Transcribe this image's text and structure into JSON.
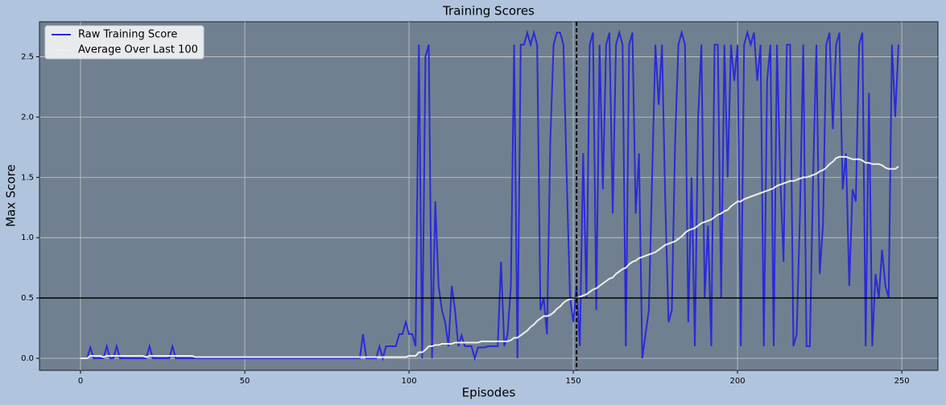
{
  "chart_data": {
    "type": "line",
    "title": "Training Scores",
    "x_label": "Episodes",
    "y_label": "Max Score",
    "x": [
      0,
      1,
      2,
      3,
      4,
      5,
      6,
      7,
      8,
      9,
      10,
      11,
      12,
      13,
      14,
      15,
      16,
      17,
      18,
      19,
      20,
      21,
      22,
      23,
      24,
      25,
      26,
      27,
      28,
      29,
      30,
      31,
      32,
      33,
      34,
      35,
      36,
      37,
      38,
      39,
      40,
      41,
      42,
      43,
      44,
      45,
      46,
      47,
      48,
      49,
      50,
      51,
      52,
      53,
      54,
      55,
      56,
      57,
      58,
      59,
      60,
      61,
      62,
      63,
      64,
      65,
      66,
      67,
      68,
      69,
      70,
      71,
      72,
      73,
      74,
      75,
      76,
      77,
      78,
      79,
      80,
      81,
      82,
      83,
      84,
      85,
      86,
      87,
      88,
      89,
      90,
      91,
      92,
      93,
      94,
      95,
      96,
      97,
      98,
      99,
      100,
      101,
      102,
      103,
      104,
      105,
      106,
      107,
      108,
      109,
      110,
      111,
      112,
      113,
      114,
      115,
      116,
      117,
      118,
      119,
      120,
      121,
      122,
      123,
      124,
      125,
      126,
      127,
      128,
      129,
      130,
      131,
      132,
      133,
      134,
      135,
      136,
      137,
      138,
      139,
      140,
      141,
      142,
      143,
      144,
      145,
      146,
      147,
      148,
      149,
      150,
      151,
      152,
      153,
      154,
      155,
      156,
      157,
      158,
      159,
      160,
      161,
      162,
      163,
      164,
      165,
      166,
      167,
      168,
      169,
      170,
      171,
      172,
      173,
      174,
      175,
      176,
      177,
      178,
      179,
      180,
      181,
      182,
      183,
      184,
      185,
      186,
      187,
      188,
      189,
      190,
      191,
      192,
      193,
      194,
      195,
      196,
      197,
      198,
      199,
      200,
      201,
      202,
      203,
      204,
      205,
      206,
      207,
      208,
      209,
      210,
      211,
      212,
      213,
      214,
      215,
      216,
      217,
      218,
      219,
      220,
      221,
      222,
      223,
      224,
      225,
      226,
      227,
      228,
      229,
      230,
      231,
      232,
      233,
      234,
      235,
      236,
      237,
      238,
      239,
      240,
      241,
      242,
      243,
      244,
      245,
      246,
      247,
      248,
      249
    ],
    "series": [
      {
        "name": "Raw Training Score",
        "color": "#2a2ad8",
        "values": [
          0,
          0,
          0,
          0.09,
          0,
          0,
          0,
          0,
          0.1,
          0,
          0,
          0.1,
          0,
          0,
          0,
          0,
          0,
          0,
          0,
          0,
          0,
          0.1,
          0,
          0,
          0,
          0,
          0,
          0,
          0.1,
          0,
          0,
          0,
          0,
          0,
          0,
          0,
          0,
          0,
          0,
          0,
          0,
          0,
          0,
          0,
          0,
          0,
          0,
          0,
          0,
          0,
          0,
          0,
          0,
          0,
          0,
          0,
          0,
          0,
          0,
          0,
          0,
          0,
          0,
          0,
          0,
          0,
          0,
          0,
          0,
          0,
          0,
          0,
          0,
          0,
          0,
          0,
          0,
          0,
          0,
          0,
          0,
          0,
          0,
          0,
          0,
          0,
          0.2,
          0,
          0,
          0,
          0,
          0.1,
          0,
          0.1,
          0.1,
          0.1,
          0.1,
          0.2,
          0.2,
          0.3,
          0.2,
          0.2,
          0.1,
          2.6,
          0,
          2.5,
          2.6,
          0,
          1.3,
          0.6,
          0.4,
          0.3,
          0.1,
          0.6,
          0.4,
          0.1,
          0.19,
          0.1,
          0.1,
          0.1,
          0,
          0.09,
          0.09,
          0.09,
          0.1,
          0.1,
          0.1,
          0.1,
          0.8,
          0.1,
          0.2,
          0.6,
          2.6,
          0,
          2.6,
          2.6,
          2.7,
          2.6,
          2.7,
          2.6,
          0.4,
          0.5,
          0.2,
          1.8,
          2.6,
          2.7,
          2.7,
          2.6,
          1.5,
          0.5,
          0.3,
          0.6,
          0.1,
          1.7,
          0.5,
          2.6,
          2.7,
          0.4,
          2.6,
          1.4,
          2.6,
          2.7,
          1.2,
          2.6,
          2.7,
          2.6,
          0.1,
          2.6,
          2.7,
          1.2,
          1.7,
          0,
          0.2,
          0.4,
          1.5,
          2.6,
          2.1,
          2.6,
          1.3,
          0.3,
          0.4,
          1.8,
          2.6,
          2.7,
          2.6,
          0.3,
          1.5,
          0.1,
          2,
          2.6,
          0.5,
          1.1,
          0.1,
          2.6,
          2.6,
          0.5,
          2.6,
          1.5,
          2.6,
          2.3,
          2.6,
          0.1,
          2.6,
          2.7,
          2.6,
          2.7,
          2.3,
          2.6,
          0.1,
          2.3,
          2.6,
          0.1,
          2.6,
          1.5,
          0.8,
          2.6,
          2.6,
          0.1,
          0.2,
          1.2,
          2.6,
          0.1,
          0.1,
          1.5,
          2.6,
          0.7,
          1.1,
          2.6,
          2.7,
          1.9,
          2.6,
          2.7,
          1.4,
          1.7,
          0.6,
          1.4,
          1.3,
          2.6,
          2.7,
          0.1,
          2.2,
          0.1,
          0.7,
          0.5,
          0.9,
          0.6,
          0.5,
          2.6,
          2,
          2.6
        ]
      },
      {
        "name": "Average Over Last 100",
        "color": "#eeeeee",
        "values": [
          0,
          0,
          0,
          0.02,
          0.02,
          0.02,
          0.02,
          0.01,
          0.02,
          0.02,
          0.02,
          0.02,
          0.02,
          0.02,
          0.02,
          0.02,
          0.02,
          0.02,
          0.02,
          0.02,
          0.01,
          0.02,
          0.02,
          0.02,
          0.02,
          0.02,
          0.02,
          0.02,
          0.02,
          0.02,
          0.02,
          0.02,
          0.02,
          0.02,
          0.02,
          0.01,
          0.01,
          0.01,
          0.01,
          0.01,
          0.01,
          0.01,
          0.01,
          0.01,
          0.01,
          0.01,
          0.01,
          0.01,
          0.01,
          0.01,
          0.01,
          0.01,
          0.01,
          0.01,
          0.01,
          0.01,
          0.01,
          0.01,
          0.01,
          0.01,
          0.01,
          0.01,
          0.01,
          0.01,
          0.01,
          0.01,
          0.01,
          0.01,
          0.01,
          0.01,
          0.01,
          0.01,
          0.01,
          0.01,
          0.01,
          0.01,
          0.01,
          0.01,
          0.01,
          0.01,
          0.01,
          0.01,
          0.01,
          0.01,
          0.01,
          0.01,
          0.01,
          0.01,
          0.01,
          0.01,
          0.01,
          0.01,
          0.01,
          0.01,
          0.01,
          0.01,
          0.01,
          0.01,
          0.01,
          0.01,
          0.02,
          0.02,
          0.02,
          0.05,
          0.05,
          0.07,
          0.1,
          0.1,
          0.11,
          0.11,
          0.12,
          0.12,
          0.12,
          0.12,
          0.13,
          0.13,
          0.13,
          0.13,
          0.13,
          0.13,
          0.13,
          0.13,
          0.14,
          0.14,
          0.14,
          0.14,
          0.14,
          0.14,
          0.14,
          0.14,
          0.14,
          0.15,
          0.17,
          0.17,
          0.19,
          0.21,
          0.23,
          0.26,
          0.28,
          0.31,
          0.33,
          0.35,
          0.35,
          0.36,
          0.38,
          0.41,
          0.43,
          0.46,
          0.48,
          0.49,
          0.5,
          0.5,
          0.51,
          0.52,
          0.53,
          0.55,
          0.57,
          0.58,
          0.6,
          0.62,
          0.64,
          0.66,
          0.67,
          0.7,
          0.72,
          0.74,
          0.75,
          0.78,
          0.8,
          0.81,
          0.83,
          0.84,
          0.85,
          0.86,
          0.87,
          0.88,
          0.9,
          0.92,
          0.94,
          0.95,
          0.96,
          0.97,
          0.99,
          1.01,
          1.04,
          1.06,
          1.07,
          1.08,
          1.1,
          1.12,
          1.13,
          1.14,
          1.15,
          1.17,
          1.19,
          1.2,
          1.22,
          1.23,
          1.26,
          1.28,
          1.3,
          1.3,
          1.32,
          1.33,
          1.34,
          1.35,
          1.36,
          1.37,
          1.38,
          1.39,
          1.4,
          1.41,
          1.43,
          1.44,
          1.45,
          1.46,
          1.47,
          1.47,
          1.48,
          1.49,
          1.5,
          1.5,
          1.51,
          1.52,
          1.53,
          1.55,
          1.56,
          1.58,
          1.61,
          1.63,
          1.66,
          1.67,
          1.67,
          1.67,
          1.66,
          1.65,
          1.65,
          1.65,
          1.64,
          1.62,
          1.62,
          1.61,
          1.61,
          1.61,
          1.6,
          1.58,
          1.57,
          1.57,
          1.57,
          1.59
        ]
      }
    ],
    "xlim": [
      -12.5,
      261
    ],
    "ylim": [
      -0.1,
      2.79
    ],
    "xticks": [
      0,
      50,
      100,
      150,
      200,
      250
    ],
    "yticks": [
      {
        "value": 0,
        "label": "0.0"
      },
      0.5,
      {
        "value": 1,
        "label": "1.0"
      },
      1.5,
      {
        "value": 2,
        "label": "2.0"
      },
      2.5
    ],
    "hline": 0.5,
    "vline": 151,
    "grid": true,
    "legend": "upper left"
  }
}
